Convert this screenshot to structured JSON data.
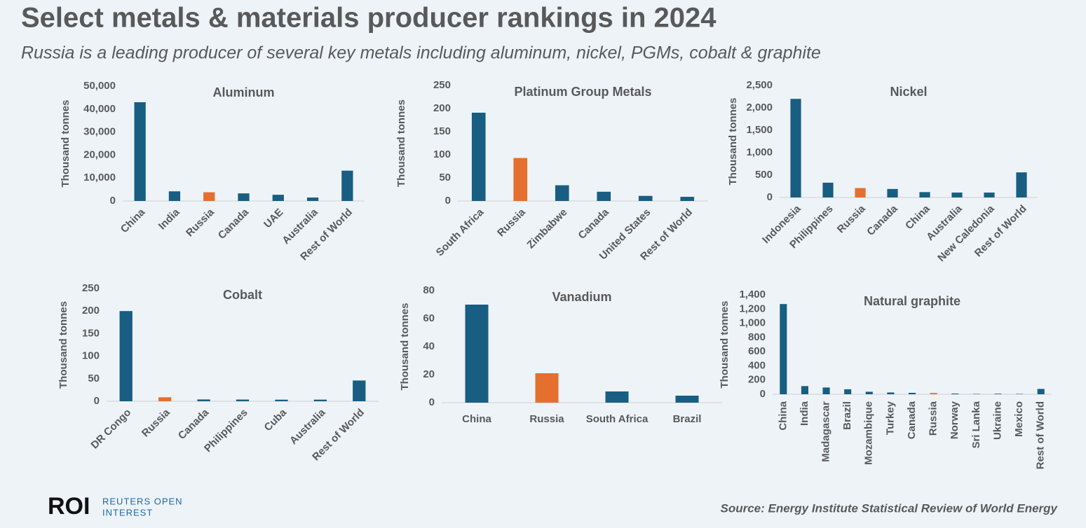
{
  "title": "Select metals & materials producer rankings in 2024",
  "subtitle": "Russia is a leading producer of several key metals including aluminum, nickel, PGMs, cobalt & graphite",
  "source": "Source: Energy Institute Statistical Review of World Energy",
  "logo": {
    "mark": "ROI",
    "lines": [
      "REUTERS OPEN",
      "INTEREST"
    ]
  },
  "chart_data": [
    {
      "type": "bar",
      "title": "Aluminum",
      "ylabel": "Thousand tonnes",
      "categories": [
        "China",
        "India",
        "Russia",
        "Canada",
        "UAE",
        "Australia",
        "Rest of World"
      ],
      "values": [
        43000,
        4200,
        3800,
        3300,
        2700,
        1500,
        13200
      ],
      "colors": [
        "#175e82",
        "#175e82",
        "#e46f2e",
        "#175e82",
        "#175e82",
        "#175e82",
        "#175e82"
      ],
      "ylim": [
        0,
        50000
      ],
      "yticks": [
        0,
        {
          "value": 10000,
          "label": "10,000"
        },
        {
          "value": 20000,
          "label": "20,000"
        },
        {
          "value": 30000,
          "label": "30,000"
        },
        {
          "value": 40000,
          "label": "40,000"
        },
        {
          "value": 50000,
          "label": "50,000"
        }
      ]
    },
    {
      "type": "bar",
      "title": "Platinum Group Metals",
      "ylabel": "Thousand tonnes",
      "categories": [
        "South Africa",
        "Russia",
        "Zimbabwe",
        "Canada",
        "United States",
        "Rest of World"
      ],
      "values": [
        191,
        93,
        34,
        20,
        11,
        9
      ],
      "colors": [
        "#175e82",
        "#e46f2e",
        "#175e82",
        "#175e82",
        "#175e82",
        "#175e82"
      ],
      "ylim": [
        0,
        250
      ],
      "yticks": [
        0,
        50,
        100,
        150,
        200,
        250
      ]
    },
    {
      "type": "bar",
      "title": "Nickel",
      "ylabel": "Thousand tonnes",
      "categories": [
        "Indonesia",
        "Philippines",
        "Russia",
        "Canada",
        "China",
        "Australia",
        "New Caledonia",
        "Rest of World"
      ],
      "values": [
        2200,
        330,
        210,
        190,
        120,
        110,
        110,
        560
      ],
      "colors": [
        "#175e82",
        "#175e82",
        "#e46f2e",
        "#175e82",
        "#175e82",
        "#175e82",
        "#175e82",
        "#175e82"
      ],
      "ylim": [
        0,
        2500
      ],
      "yticks": [
        0,
        500,
        {
          "value": 1000,
          "label": "1,000"
        },
        {
          "value": 1500,
          "label": "1,500"
        },
        {
          "value": 2000,
          "label": "2,000"
        },
        {
          "value": 2500,
          "label": "2,500"
        }
      ]
    },
    {
      "type": "bar",
      "title": "Cobalt",
      "ylabel": "Thousand tonnes",
      "categories": [
        "DR Congo",
        "Russia",
        "Canada",
        "Philippines",
        "Cuba",
        "Australia",
        "Rest of World"
      ],
      "values": [
        200,
        8.8,
        4,
        3.8,
        3.5,
        3.6,
        46
      ],
      "colors": [
        "#175e82",
        "#e46f2e",
        "#175e82",
        "#175e82",
        "#175e82",
        "#175e82",
        "#175e82"
      ],
      "ylim": [
        0,
        250
      ],
      "yticks": [
        0,
        50,
        100,
        150,
        200,
        250
      ]
    },
    {
      "type": "bar",
      "title": "Vanadium",
      "ylabel": "Thousand tonnes",
      "categories": [
        "China",
        "Russia",
        "South Africa",
        "Brazil"
      ],
      "values": [
        70,
        21,
        8,
        5
      ],
      "colors": [
        "#175e82",
        "#e46f2e",
        "#175e82",
        "#175e82"
      ],
      "ylim": [
        0,
        80
      ],
      "yticks": [
        0,
        20,
        40,
        60,
        80
      ]
    },
    {
      "type": "bar",
      "title": "Natural graphite",
      "ylabel": "Thousand tonnes",
      "categories": [
        "China",
        "India",
        "Madagascar",
        "Brazil",
        "Mozambique",
        "Turkey",
        "Canada",
        "Russia",
        "Norway",
        "Sri Lanka",
        "Ukraine",
        "Mexico",
        "Rest of World"
      ],
      "values": [
        1270,
        115,
        95,
        70,
        35,
        25,
        20,
        18,
        10,
        5,
        8,
        5,
        75
      ],
      "colors": [
        "#175e82",
        "#175e82",
        "#175e82",
        "#175e82",
        "#175e82",
        "#175e82",
        "#175e82",
        "#e46f2e",
        "#175e82",
        "#175e82",
        "#175e82",
        "#175e82",
        "#175e82"
      ],
      "ylim": [
        0,
        1400
      ],
      "yticks": [
        0,
        200,
        400,
        600,
        800,
        {
          "value": 1000,
          "label": "1,000"
        },
        {
          "value": 1200,
          "label": "1,200"
        },
        {
          "value": 1400,
          "label": "1,400"
        }
      ]
    }
  ]
}
